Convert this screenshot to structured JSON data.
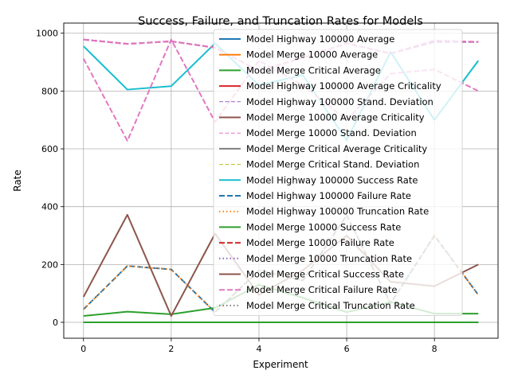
{
  "chart_data": {
    "type": "line",
    "title": "Success, Failure, and Truncation Rates for Models",
    "xlabel": "Experiment",
    "ylabel": "Rate",
    "xlim": [
      -0.45,
      9.45
    ],
    "ylim": [
      -55,
      1035
    ],
    "xticks": [
      0,
      2,
      4,
      6,
      8
    ],
    "yticks": [
      0,
      200,
      400,
      600,
      800,
      1000
    ],
    "grid": true,
    "legend_position": "right",
    "x": [
      0,
      1,
      2,
      3,
      4,
      5,
      6,
      7,
      8,
      9
    ],
    "series": [
      {
        "name": "Model Highway 100000 Success Rate",
        "color": "#17becf",
        "style": "solid",
        "values": [
          955,
          805,
          817,
          965,
          820,
          855,
          630,
          935,
          700,
          905
        ]
      },
      {
        "name": "Model Highway 100000 Failure Rate",
        "color": "#1f77b4",
        "style": "dashed",
        "values": [
          45,
          195,
          183,
          35,
          180,
          145,
          370,
          65,
          300,
          95
        ]
      },
      {
        "name": "Model Highway 100000 Truncation Rate",
        "color": "#ff7f0e",
        "style": "dotted",
        "values": [
          45,
          195,
          183,
          35,
          180,
          145,
          370,
          65,
          300,
          95
        ]
      },
      {
        "name": "Model Merge 10000 Success Rate",
        "color": "#2ca02c",
        "style": "solid",
        "values": [
          22,
          37,
          28,
          50,
          130,
          85,
          35,
          70,
          30,
          30
        ]
      },
      {
        "name": "Model Merge 10000 Failure Rate",
        "color": "#d62728",
        "style": "dashed",
        "values": [
          978,
          963,
          972,
          950,
          870,
          915,
          965,
          930,
          970,
          970
        ]
      },
      {
        "name": "Model Merge 10000 Truncation Rate",
        "color": "#9467bd",
        "style": "dotted",
        "values": [
          0,
          0,
          0,
          0,
          0,
          0,
          0,
          0,
          0,
          0
        ]
      },
      {
        "name": "Model Merge Critical Success Rate",
        "color": "#8c564b",
        "style": "solid",
        "values": [
          88,
          372,
          22,
          307,
          95,
          180,
          300,
          140,
          125,
          200
        ]
      },
      {
        "name": "Model Merge Critical Failure Rate",
        "color": "#e377c2",
        "style": "dashed",
        "values": [
          912,
          628,
          978,
          693,
          905,
          820,
          700,
          860,
          875,
          800
        ]
      },
      {
        "name": "Model Merge Critical Truncation Rate",
        "color": "#7f7f7f",
        "style": "dotted",
        "values": [
          0,
          0,
          0,
          0,
          0,
          0,
          0,
          0,
          0,
          0
        ]
      },
      {
        "name": "Model Merge Critical Average",
        "color": "#2ca02c",
        "style": "solid",
        "values": [
          0,
          0,
          0,
          0,
          0,
          0,
          0,
          0,
          0,
          0
        ]
      },
      {
        "name": "Model Highway 100000 Stand. Deviation",
        "color": "#9467bd",
        "style": "dashed",
        "values": [
          978,
          963,
          972,
          950,
          870,
          915,
          965,
          930,
          970,
          970
        ]
      },
      {
        "name": "Model Merge 10000 Stand. Deviation",
        "color": "#e377c2",
        "style": "dashed",
        "values": [
          978,
          963,
          972,
          950,
          870,
          915,
          965,
          930,
          975,
          970
        ]
      }
    ]
  },
  "legend": {
    "entries": [
      {
        "label": "Model Highway 100000 Average",
        "color": "#1f77b4",
        "style": "solid"
      },
      {
        "label": "Model Merge 10000 Average",
        "color": "#ff7f0e",
        "style": "solid"
      },
      {
        "label": "Model Merge Critical Average",
        "color": "#2ca02c",
        "style": "solid"
      },
      {
        "label": "Model Highway 100000 Average Criticality",
        "color": "#d62728",
        "style": "solid"
      },
      {
        "label": "Model Highway 100000 Stand. Deviation",
        "color": "#9467bd",
        "style": "dashed-thin"
      },
      {
        "label": "Model Merge 10000 Average Criticality",
        "color": "#8c564b",
        "style": "solid"
      },
      {
        "label": "Model Merge 10000 Stand. Deviation",
        "color": "#e377c2",
        "style": "dashed-thin"
      },
      {
        "label": "Model Merge Critical Average Criticality",
        "color": "#7f7f7f",
        "style": "solid"
      },
      {
        "label": "Model Merge Critical Stand. Deviation",
        "color": "#bcbd22",
        "style": "dashed-thin"
      },
      {
        "label": "Model Highway 100000 Success Rate",
        "color": "#17becf",
        "style": "solid"
      },
      {
        "label": "Model Highway 100000 Failure Rate",
        "color": "#1f77b4",
        "style": "dashed"
      },
      {
        "label": "Model Highway 100000 Truncation Rate",
        "color": "#ff7f0e",
        "style": "dotted"
      },
      {
        "label": "Model Merge 10000 Success Rate",
        "color": "#2ca02c",
        "style": "solid"
      },
      {
        "label": "Model Merge 10000 Failure Rate",
        "color": "#d62728",
        "style": "dashed"
      },
      {
        "label": "Model Merge 10000 Truncation Rate",
        "color": "#9467bd",
        "style": "dotted"
      },
      {
        "label": "Model Merge Critical Success Rate",
        "color": "#8c564b",
        "style": "solid"
      },
      {
        "label": "Model Merge Critical Failure Rate",
        "color": "#e377c2",
        "style": "dashed"
      },
      {
        "label": "Model Merge Critical Truncation Rate",
        "color": "#7f7f7f",
        "style": "dotted"
      }
    ]
  }
}
